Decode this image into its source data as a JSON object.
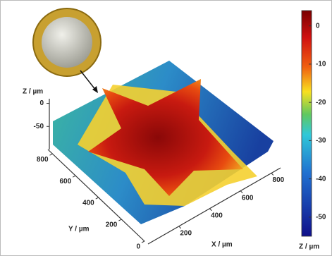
{
  "chart_data": {
    "type": "surface3d",
    "xlabel": "X / µm",
    "ylabel": "Y / µm",
    "zlabel": "Z / µm",
    "xlim": [
      0,
      860
    ],
    "xticks": [
      200,
      400,
      600,
      800
    ],
    "ylim": [
      0,
      840
    ],
    "yticks": [
      0,
      200,
      400,
      600,
      800
    ],
    "zlim": [
      -100,
      10
    ],
    "zticks": [
      0,
      -50
    ],
    "colorbar": {
      "label": "Z / µm",
      "lim": [
        -55,
        4
      ],
      "ticks": [
        0,
        -10,
        -20,
        -30,
        -40,
        -50
      ]
    }
  }
}
